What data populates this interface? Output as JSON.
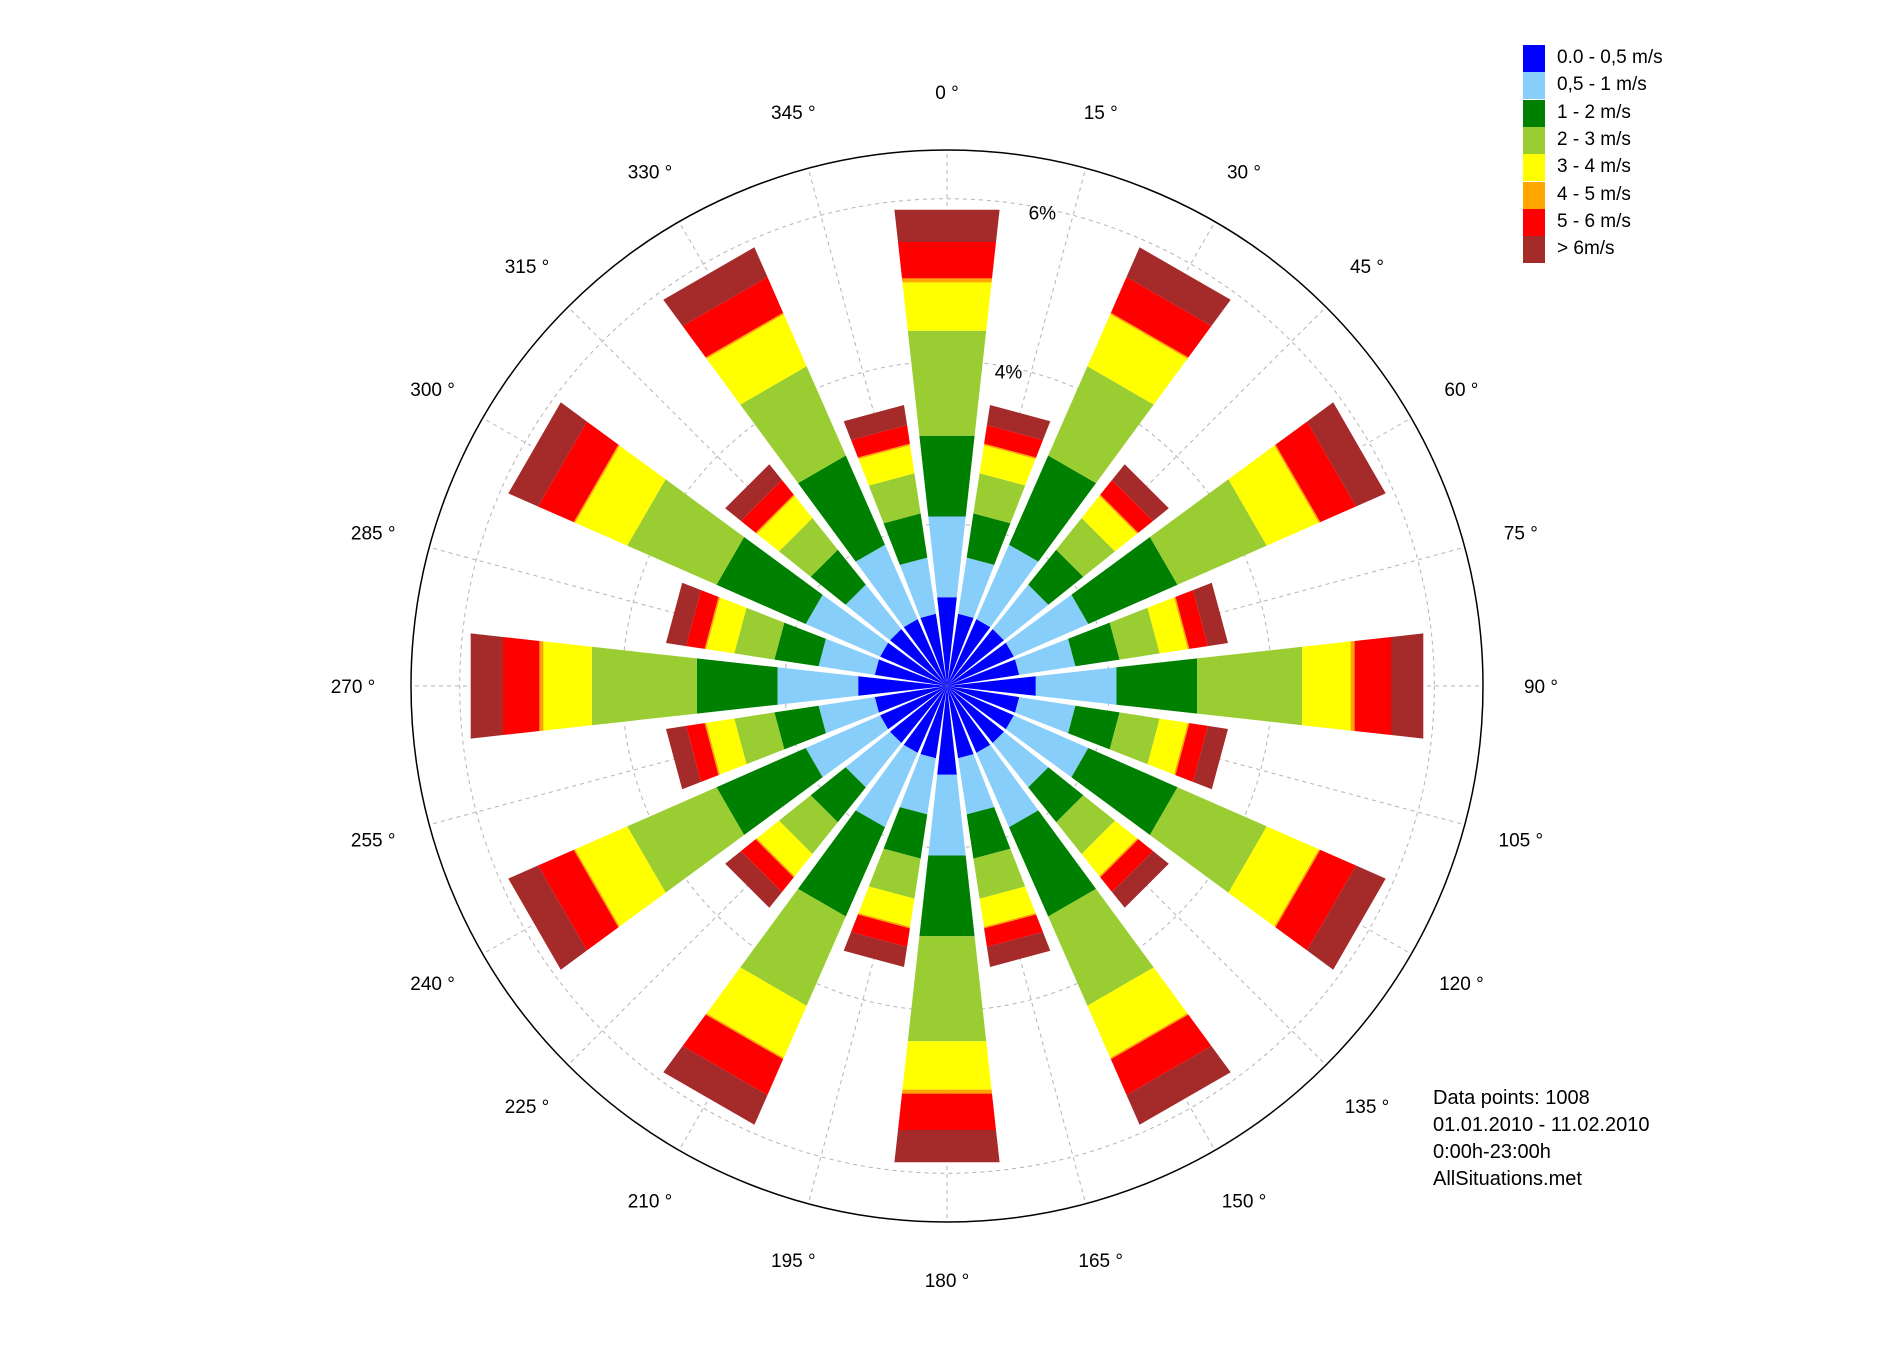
{
  "chart_data": {
    "type": "windrose",
    "title": "",
    "directions": [
      0,
      15,
      30,
      45,
      60,
      75,
      90,
      105,
      120,
      135,
      150,
      165,
      180,
      195,
      210,
      225,
      240,
      255,
      270,
      285,
      300,
      315,
      330,
      345
    ],
    "direction_labels": [
      "0 °",
      "15 °",
      "30 °",
      "45 °",
      "60 °",
      "75 °",
      "90 °",
      "105 °",
      "120 °",
      "135 °",
      "150 °",
      "165 °",
      "180 °",
      "195 °",
      "210 °",
      "225 °",
      "240 °",
      "255 °",
      "270 °",
      "285 °",
      "300 °",
      "315 °",
      "330 °",
      "345 °"
    ],
    "radial_ticks": [
      {
        "value": 4,
        "label": "4%"
      },
      {
        "value": 6,
        "label": "6%"
      }
    ],
    "rmax": 6.6,
    "grid": true,
    "legend_position": "top-right",
    "speed_classes": [
      {
        "name": "0.0 - 0,5 m/s",
        "color": "#0000ff"
      },
      {
        "name": "0,5 - 1 m/s",
        "color": "#87cefa"
      },
      {
        "name": " 1 - 2 m/s",
        "color": "#008000"
      },
      {
        "name": " 2 - 3 m/s",
        "color": "#9acd32"
      },
      {
        "name": " 3 - 4 m/s",
        "color": "#ffff00"
      },
      {
        "name": " 4 - 5 m/s",
        "color": "#ffa500"
      },
      {
        "name": " 5 - 6 m/s",
        "color": "#ff0000"
      },
      {
        "name": "> 6m/s",
        "color": "#a52a2a"
      }
    ],
    "cumulative_percent_by_direction": [
      [
        1.1,
        2.1,
        3.1,
        4.4,
        5.0,
        5.05,
        5.5,
        5.9
      ],
      [
        0.9,
        1.6,
        2.15,
        2.65,
        3.0,
        3.02,
        3.25,
        3.5
      ],
      [
        0.9,
        1.9,
        3.1,
        4.3,
        5.0,
        5.02,
        5.5,
        5.9
      ],
      [
        0.9,
        1.6,
        2.15,
        2.65,
        3.0,
        3.02,
        3.25,
        3.5
      ],
      [
        0.9,
        1.9,
        3.1,
        4.3,
        5.0,
        5.02,
        5.5,
        5.9
      ],
      [
        0.9,
        1.6,
        2.15,
        2.65,
        3.0,
        3.02,
        3.25,
        3.5
      ],
      [
        1.1,
        2.1,
        3.1,
        4.4,
        5.0,
        5.05,
        5.5,
        5.9
      ],
      [
        0.9,
        1.6,
        2.15,
        2.65,
        3.0,
        3.02,
        3.25,
        3.5
      ],
      [
        0.9,
        1.9,
        3.1,
        4.3,
        5.0,
        5.02,
        5.5,
        5.9
      ],
      [
        0.9,
        1.6,
        2.15,
        2.65,
        3.0,
        3.02,
        3.25,
        3.5
      ],
      [
        0.9,
        1.9,
        3.1,
        4.3,
        5.0,
        5.02,
        5.5,
        5.9
      ],
      [
        0.9,
        1.6,
        2.15,
        2.65,
        3.0,
        3.02,
        3.25,
        3.5
      ],
      [
        1.1,
        2.1,
        3.1,
        4.4,
        5.0,
        5.05,
        5.5,
        5.9
      ],
      [
        0.9,
        1.6,
        2.15,
        2.65,
        3.0,
        3.02,
        3.25,
        3.5
      ],
      [
        0.9,
        1.9,
        3.1,
        4.3,
        5.0,
        5.02,
        5.5,
        5.9
      ],
      [
        0.9,
        1.6,
        2.15,
        2.65,
        3.0,
        3.02,
        3.25,
        3.5
      ],
      [
        0.9,
        1.9,
        3.1,
        4.3,
        5.0,
        5.02,
        5.5,
        5.9
      ],
      [
        0.9,
        1.6,
        2.15,
        2.65,
        3.0,
        3.02,
        3.25,
        3.5
      ],
      [
        1.1,
        2.1,
        3.1,
        4.4,
        5.0,
        5.05,
        5.5,
        5.9
      ],
      [
        0.9,
        1.6,
        2.15,
        2.65,
        3.0,
        3.02,
        3.25,
        3.5
      ],
      [
        0.9,
        1.9,
        3.1,
        4.3,
        5.0,
        5.02,
        5.5,
        5.9
      ],
      [
        0.9,
        1.6,
        2.15,
        2.65,
        3.0,
        3.02,
        3.25,
        3.5
      ],
      [
        0.9,
        1.9,
        3.1,
        4.3,
        5.0,
        5.02,
        5.5,
        5.9
      ],
      [
        0.9,
        1.6,
        2.15,
        2.65,
        3.0,
        3.02,
        3.25,
        3.5
      ]
    ]
  },
  "info": {
    "data_points": "Data points: 1008",
    "date_range": "01.01.2010 - 11.02.2010",
    "time_range": "0:00h-23:00h",
    "file": "AllSituations.met"
  }
}
